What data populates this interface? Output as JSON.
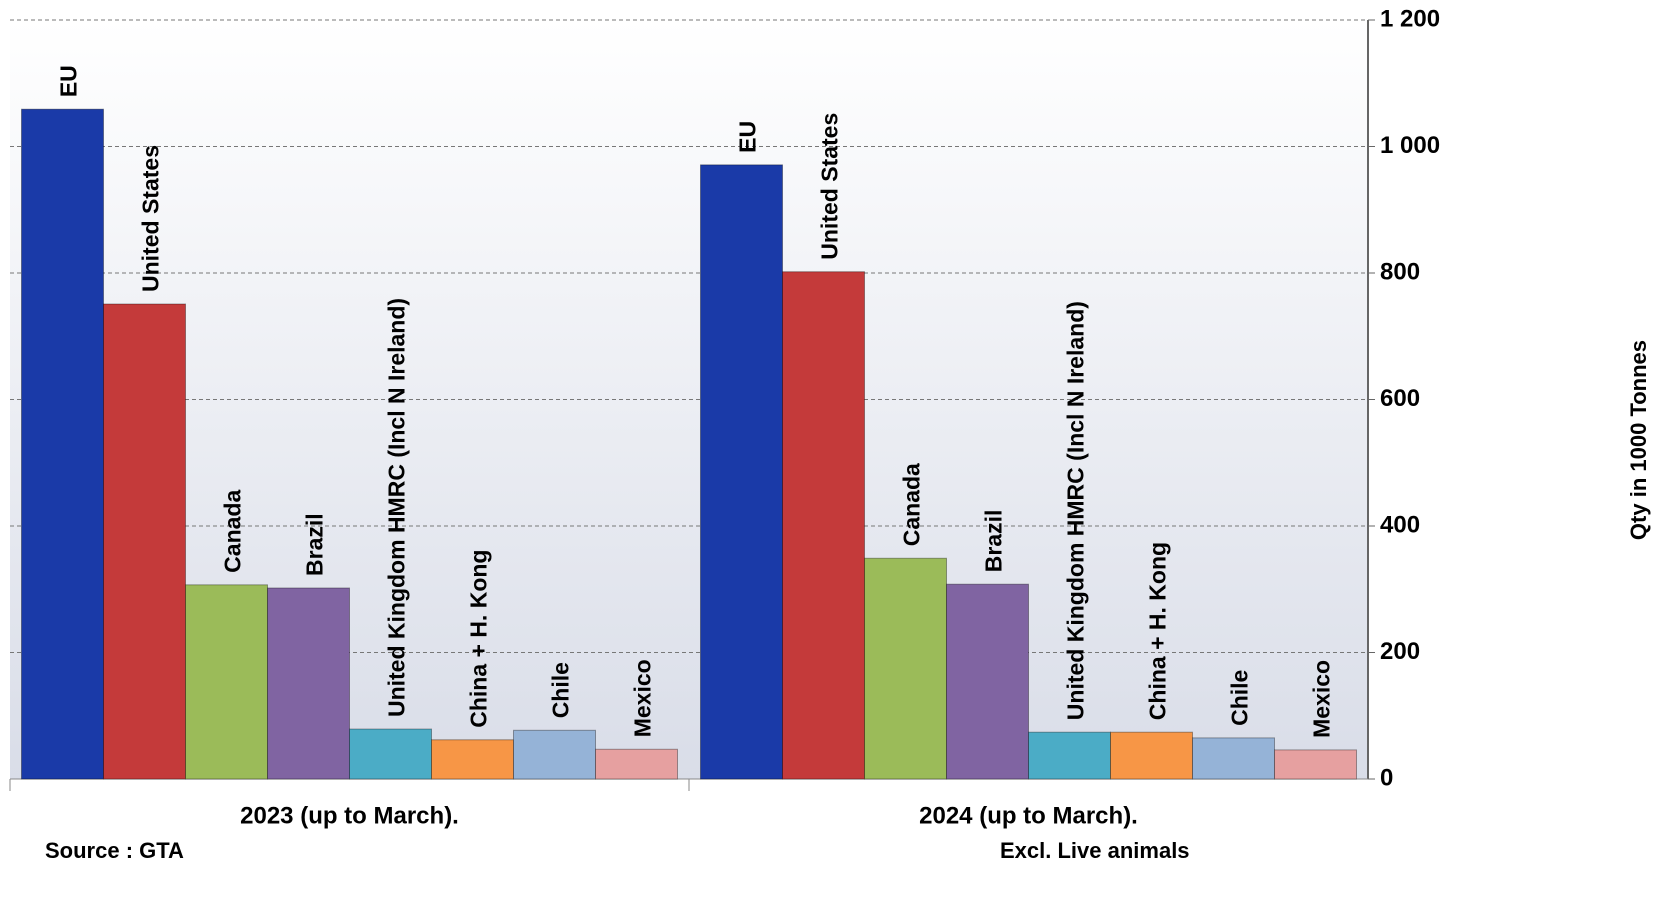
{
  "chart_data": {
    "type": "bar",
    "categories": [
      "2023 (up to March).",
      "2024 (up to March)."
    ],
    "series": [
      {
        "name": "EU",
        "color": "#1a3aa8",
        "values": [
          1059,
          971
        ]
      },
      {
        "name": "United States",
        "color": "#c43a3a",
        "values": [
          751,
          802
        ]
      },
      {
        "name": "Canada",
        "color": "#9bbb59",
        "values": [
          307,
          349
        ]
      },
      {
        "name": "Brazil",
        "color": "#8064a2",
        "values": [
          302,
          308
        ]
      },
      {
        "name": "United Kingdom HMRC (Incl N Ireland)",
        "color": "#4bacc6",
        "values": [
          79,
          74
        ]
      },
      {
        "name": "China + H. Kong",
        "color": "#f79646",
        "values": [
          62,
          74
        ]
      },
      {
        "name": "Chile",
        "color": "#95b3d7",
        "values": [
          77,
          65
        ]
      },
      {
        "name": "Mexico",
        "color": "#e6a0a0",
        "values": [
          47,
          46
        ]
      }
    ],
    "ylim": [
      0,
      1200
    ],
    "yticks": [
      0,
      200,
      400,
      600,
      800,
      {
        "value": 1000,
        "label": "1 000"
      },
      {
        "value": 1200,
        "label": "1 200"
      }
    ],
    "y_label": "Qty in 1000 Tonnes",
    "grid": true,
    "source": "Source : GTA",
    "note": "Excl. Live animals"
  }
}
